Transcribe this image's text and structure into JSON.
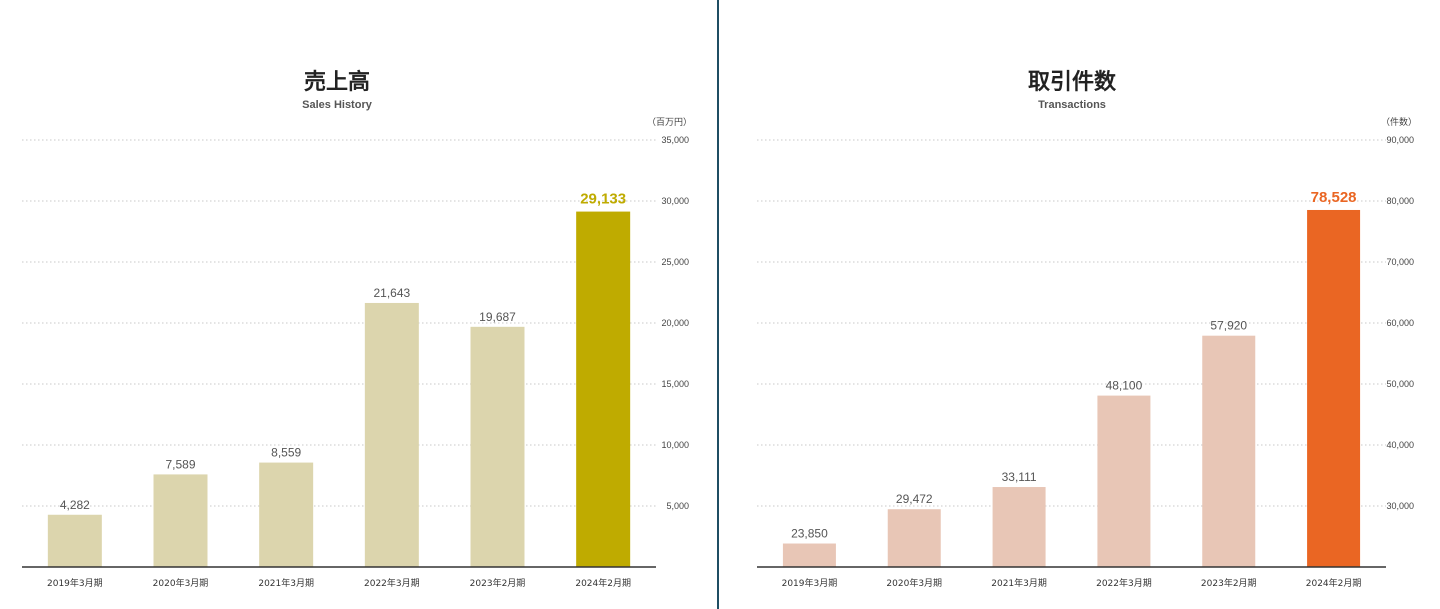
{
  "colors": {
    "grid": "#c8c8c8",
    "axis": "#333333",
    "text": "#444444",
    "divider": "#1f4e63"
  },
  "chart_data": [
    {
      "type": "bar",
      "title": "売上高",
      "subtitle": "Sales History",
      "unit": "（百万円）",
      "categories": [
        "2019年3月期",
        "2020年3月期",
        "2021年3月期",
        "2022年3月期",
        "2023年2月期",
        "2024年2月期"
      ],
      "values": [
        4282,
        7589,
        8559,
        21643,
        19687,
        29133
      ],
      "value_labels": [
        "4,282",
        "7,589",
        "8,559",
        "21,643",
        "19,687",
        "29,133"
      ],
      "ylim": [
        0,
        35000
      ],
      "yticks": [
        5000,
        10000,
        15000,
        20000,
        25000,
        30000,
        35000
      ],
      "ytick_labels": [
        "5,000",
        "10,000",
        "15,000",
        "20,000",
        "25,000",
        "30,000",
        "35,000"
      ],
      "bar_color": "#dcd5ad",
      "highlight_color": "#bfab00",
      "highlight_index": 5
    },
    {
      "type": "bar",
      "title": "取引件数",
      "subtitle": "Transactions",
      "unit": "（件数）",
      "categories": [
        "2019年3月期",
        "2020年3月期",
        "2021年3月期",
        "2022年3月期",
        "2023年2月期",
        "2024年2月期"
      ],
      "values": [
        23850,
        29472,
        33111,
        48100,
        57920,
        78528
      ],
      "value_labels": [
        "23,850",
        "29,472",
        "33,111",
        "48,100",
        "57,920",
        "78,528"
      ],
      "ylim": [
        20000,
        90000
      ],
      "yticks": [
        30000,
        40000,
        50000,
        60000,
        70000,
        80000,
        90000
      ],
      "ytick_labels": [
        "30,000",
        "40,000",
        "50,000",
        "60,000",
        "70,000",
        "80,000",
        "90,000"
      ],
      "bar_color": "#e8c6b6",
      "highlight_color": "#ea6623",
      "highlight_index": 5
    }
  ]
}
